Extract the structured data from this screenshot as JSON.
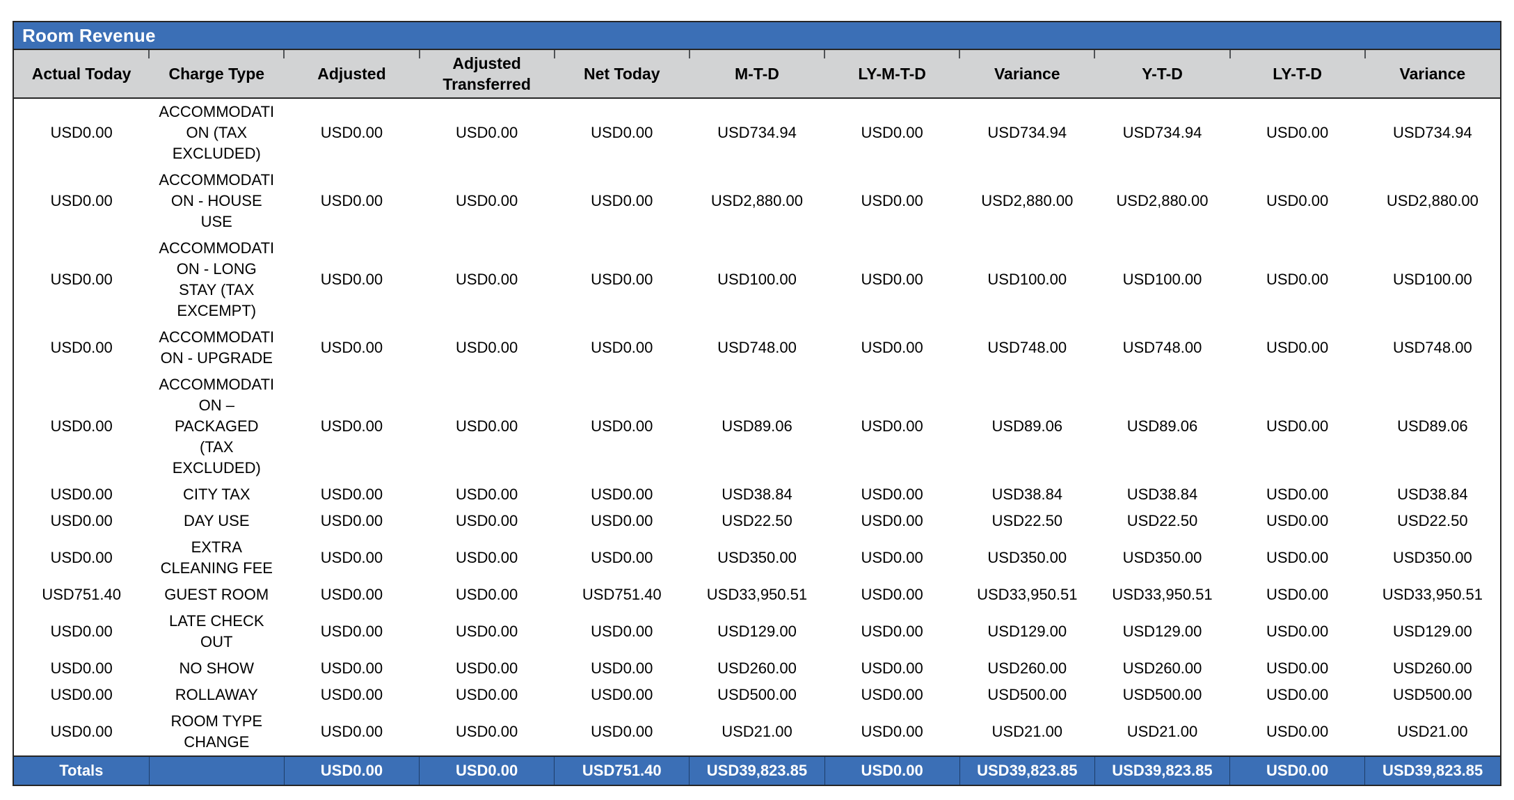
{
  "report": {
    "title": "Room Revenue",
    "columns": [
      "Actual Today",
      "Charge Type",
      "Adjusted",
      "Adjusted Transferred",
      "Net Today",
      "M-T-D",
      "LY-M-T-D",
      "Variance",
      "Y-T-D",
      "LY-T-D",
      "Variance"
    ],
    "field_order": [
      "actual_today",
      "charge_type",
      "adjusted",
      "adjusted_transferred",
      "net_today",
      "mtd",
      "ly_mtd",
      "variance_mtd",
      "ytd",
      "ly_td",
      "variance_ytd"
    ],
    "rows": [
      {
        "actual_today": "USD0.00",
        "charge_type": "ACCOMMODATI\nON (TAX\nEXCLUDED)",
        "adjusted": "USD0.00",
        "adjusted_transferred": "USD0.00",
        "net_today": "USD0.00",
        "mtd": "USD734.94",
        "ly_mtd": "USD0.00",
        "variance_mtd": "USD734.94",
        "ytd": "USD734.94",
        "ly_td": "USD0.00",
        "variance_ytd": "USD734.94"
      },
      {
        "actual_today": "USD0.00",
        "charge_type": "ACCOMMODATI\nON - HOUSE\nUSE",
        "adjusted": "USD0.00",
        "adjusted_transferred": "USD0.00",
        "net_today": "USD0.00",
        "mtd": "USD2,880.00",
        "ly_mtd": "USD0.00",
        "variance_mtd": "USD2,880.00",
        "ytd": "USD2,880.00",
        "ly_td": "USD0.00",
        "variance_ytd": "USD2,880.00"
      },
      {
        "actual_today": "USD0.00",
        "charge_type": "ACCOMMODATI\nON - LONG\nSTAY (TAX\nEXCEMPT)",
        "adjusted": "USD0.00",
        "adjusted_transferred": "USD0.00",
        "net_today": "USD0.00",
        "mtd": "USD100.00",
        "ly_mtd": "USD0.00",
        "variance_mtd": "USD100.00",
        "ytd": "USD100.00",
        "ly_td": "USD0.00",
        "variance_ytd": "USD100.00"
      },
      {
        "actual_today": "USD0.00",
        "charge_type": "ACCOMMODATI\nON - UPGRADE",
        "adjusted": "USD0.00",
        "adjusted_transferred": "USD0.00",
        "net_today": "USD0.00",
        "mtd": "USD748.00",
        "ly_mtd": "USD0.00",
        "variance_mtd": "USD748.00",
        "ytd": "USD748.00",
        "ly_td": "USD0.00",
        "variance_ytd": "USD748.00"
      },
      {
        "actual_today": "USD0.00",
        "charge_type": "ACCOMMODATI\nON –\nPACKAGED\n(TAX\nEXCLUDED)",
        "adjusted": "USD0.00",
        "adjusted_transferred": "USD0.00",
        "net_today": "USD0.00",
        "mtd": "USD89.06",
        "ly_mtd": "USD0.00",
        "variance_mtd": "USD89.06",
        "ytd": "USD89.06",
        "ly_td": "USD0.00",
        "variance_ytd": "USD89.06"
      },
      {
        "actual_today": "USD0.00",
        "charge_type": "CITY TAX",
        "adjusted": "USD0.00",
        "adjusted_transferred": "USD0.00",
        "net_today": "USD0.00",
        "mtd": "USD38.84",
        "ly_mtd": "USD0.00",
        "variance_mtd": "USD38.84",
        "ytd": "USD38.84",
        "ly_td": "USD0.00",
        "variance_ytd": "USD38.84"
      },
      {
        "actual_today": "USD0.00",
        "charge_type": "DAY USE",
        "adjusted": "USD0.00",
        "adjusted_transferred": "USD0.00",
        "net_today": "USD0.00",
        "mtd": "USD22.50",
        "ly_mtd": "USD0.00",
        "variance_mtd": "USD22.50",
        "ytd": "USD22.50",
        "ly_td": "USD0.00",
        "variance_ytd": "USD22.50"
      },
      {
        "actual_today": "USD0.00",
        "charge_type": "EXTRA\nCLEANING FEE",
        "adjusted": "USD0.00",
        "adjusted_transferred": "USD0.00",
        "net_today": "USD0.00",
        "mtd": "USD350.00",
        "ly_mtd": "USD0.00",
        "variance_mtd": "USD350.00",
        "ytd": "USD350.00",
        "ly_td": "USD0.00",
        "variance_ytd": "USD350.00"
      },
      {
        "actual_today": "USD751.40",
        "charge_type": "GUEST ROOM",
        "adjusted": "USD0.00",
        "adjusted_transferred": "USD0.00",
        "net_today": "USD751.40",
        "mtd": "USD33,950.51",
        "ly_mtd": "USD0.00",
        "variance_mtd": "USD33,950.51",
        "ytd": "USD33,950.51",
        "ly_td": "USD0.00",
        "variance_ytd": "USD33,950.51"
      },
      {
        "actual_today": "USD0.00",
        "charge_type": "LATE CHECK\nOUT",
        "adjusted": "USD0.00",
        "adjusted_transferred": "USD0.00",
        "net_today": "USD0.00",
        "mtd": "USD129.00",
        "ly_mtd": "USD0.00",
        "variance_mtd": "USD129.00",
        "ytd": "USD129.00",
        "ly_td": "USD0.00",
        "variance_ytd": "USD129.00"
      },
      {
        "actual_today": "USD0.00",
        "charge_type": "NO SHOW",
        "adjusted": "USD0.00",
        "adjusted_transferred": "USD0.00",
        "net_today": "USD0.00",
        "mtd": "USD260.00",
        "ly_mtd": "USD0.00",
        "variance_mtd": "USD260.00",
        "ytd": "USD260.00",
        "ly_td": "USD0.00",
        "variance_ytd": "USD260.00"
      },
      {
        "actual_today": "USD0.00",
        "charge_type": "ROLLAWAY",
        "adjusted": "USD0.00",
        "adjusted_transferred": "USD0.00",
        "net_today": "USD0.00",
        "mtd": "USD500.00",
        "ly_mtd": "USD0.00",
        "variance_mtd": "USD500.00",
        "ytd": "USD500.00",
        "ly_td": "USD0.00",
        "variance_ytd": "USD500.00"
      },
      {
        "actual_today": "USD0.00",
        "charge_type": "ROOM TYPE\nCHANGE",
        "adjusted": "USD0.00",
        "adjusted_transferred": "USD0.00",
        "net_today": "USD0.00",
        "mtd": "USD21.00",
        "ly_mtd": "USD0.00",
        "variance_mtd": "USD21.00",
        "ytd": "USD21.00",
        "ly_td": "USD0.00",
        "variance_ytd": "USD21.00"
      }
    ],
    "totals": {
      "label": "Totals",
      "charge_type": "",
      "adjusted": "USD0.00",
      "adjusted_transferred": "USD0.00",
      "net_today": "USD751.40",
      "mtd": "USD39,823.85",
      "ly_mtd": "USD0.00",
      "variance_mtd": "USD39,823.85",
      "ytd": "USD39,823.85",
      "ly_td": "USD0.00",
      "variance_ytd": "USD39,823.85"
    }
  },
  "colors": {
    "accent_blue": "#3b6fb6",
    "header_gray": "#d2d3d4",
    "border_dark": "#262626"
  }
}
